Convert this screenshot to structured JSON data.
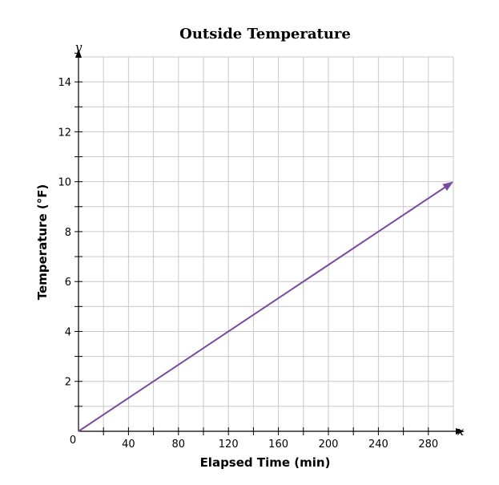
{
  "chart_data": {
    "type": "line",
    "title": "Outside Temperature",
    "xlabel": "Elapsed Time (min)",
    "ylabel": "Temperature (°F)",
    "x_axis_variable": "x",
    "y_axis_variable": "y",
    "origin_label": "0",
    "xlim": [
      0,
      300
    ],
    "ylim": [
      0,
      15
    ],
    "x_ticks": [
      40,
      80,
      120,
      160,
      200,
      240,
      280
    ],
    "y_ticks": [
      2,
      4,
      6,
      8,
      10,
      12,
      14
    ],
    "x_minor_step": 20,
    "y_minor_step": 1,
    "grid": true,
    "series": [
      {
        "x": [
          0,
          300
        ],
        "y": [
          0,
          10
        ],
        "color": "#7a4a9c",
        "arrow_end": true
      }
    ]
  }
}
